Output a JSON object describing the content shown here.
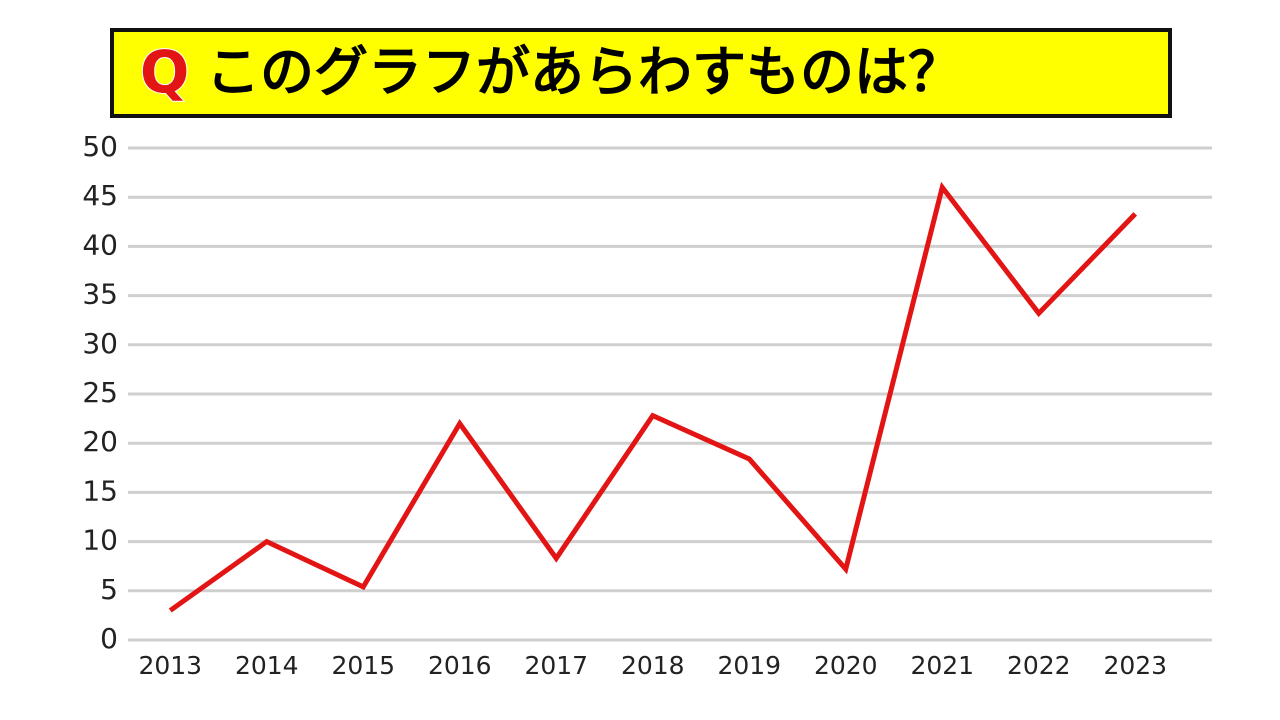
{
  "chart_data": {
    "type": "line",
    "title_marker": "Q",
    "title": "このグラフがあらわすものは？",
    "categories": [
      "2013",
      "2014",
      "2015",
      "2016",
      "2017",
      "2018",
      "2019",
      "2020",
      "2021",
      "2022",
      "2023"
    ],
    "values": [
      3.0,
      10.0,
      5.4,
      22.0,
      8.3,
      22.8,
      18.4,
      7.2,
      46.0,
      33.2,
      43.3
    ],
    "color": "#e31414",
    "ylim": [
      0,
      50
    ],
    "yticks": [
      0,
      5,
      10,
      15,
      20,
      25,
      30,
      35,
      40,
      45,
      50
    ],
    "grid": true
  }
}
